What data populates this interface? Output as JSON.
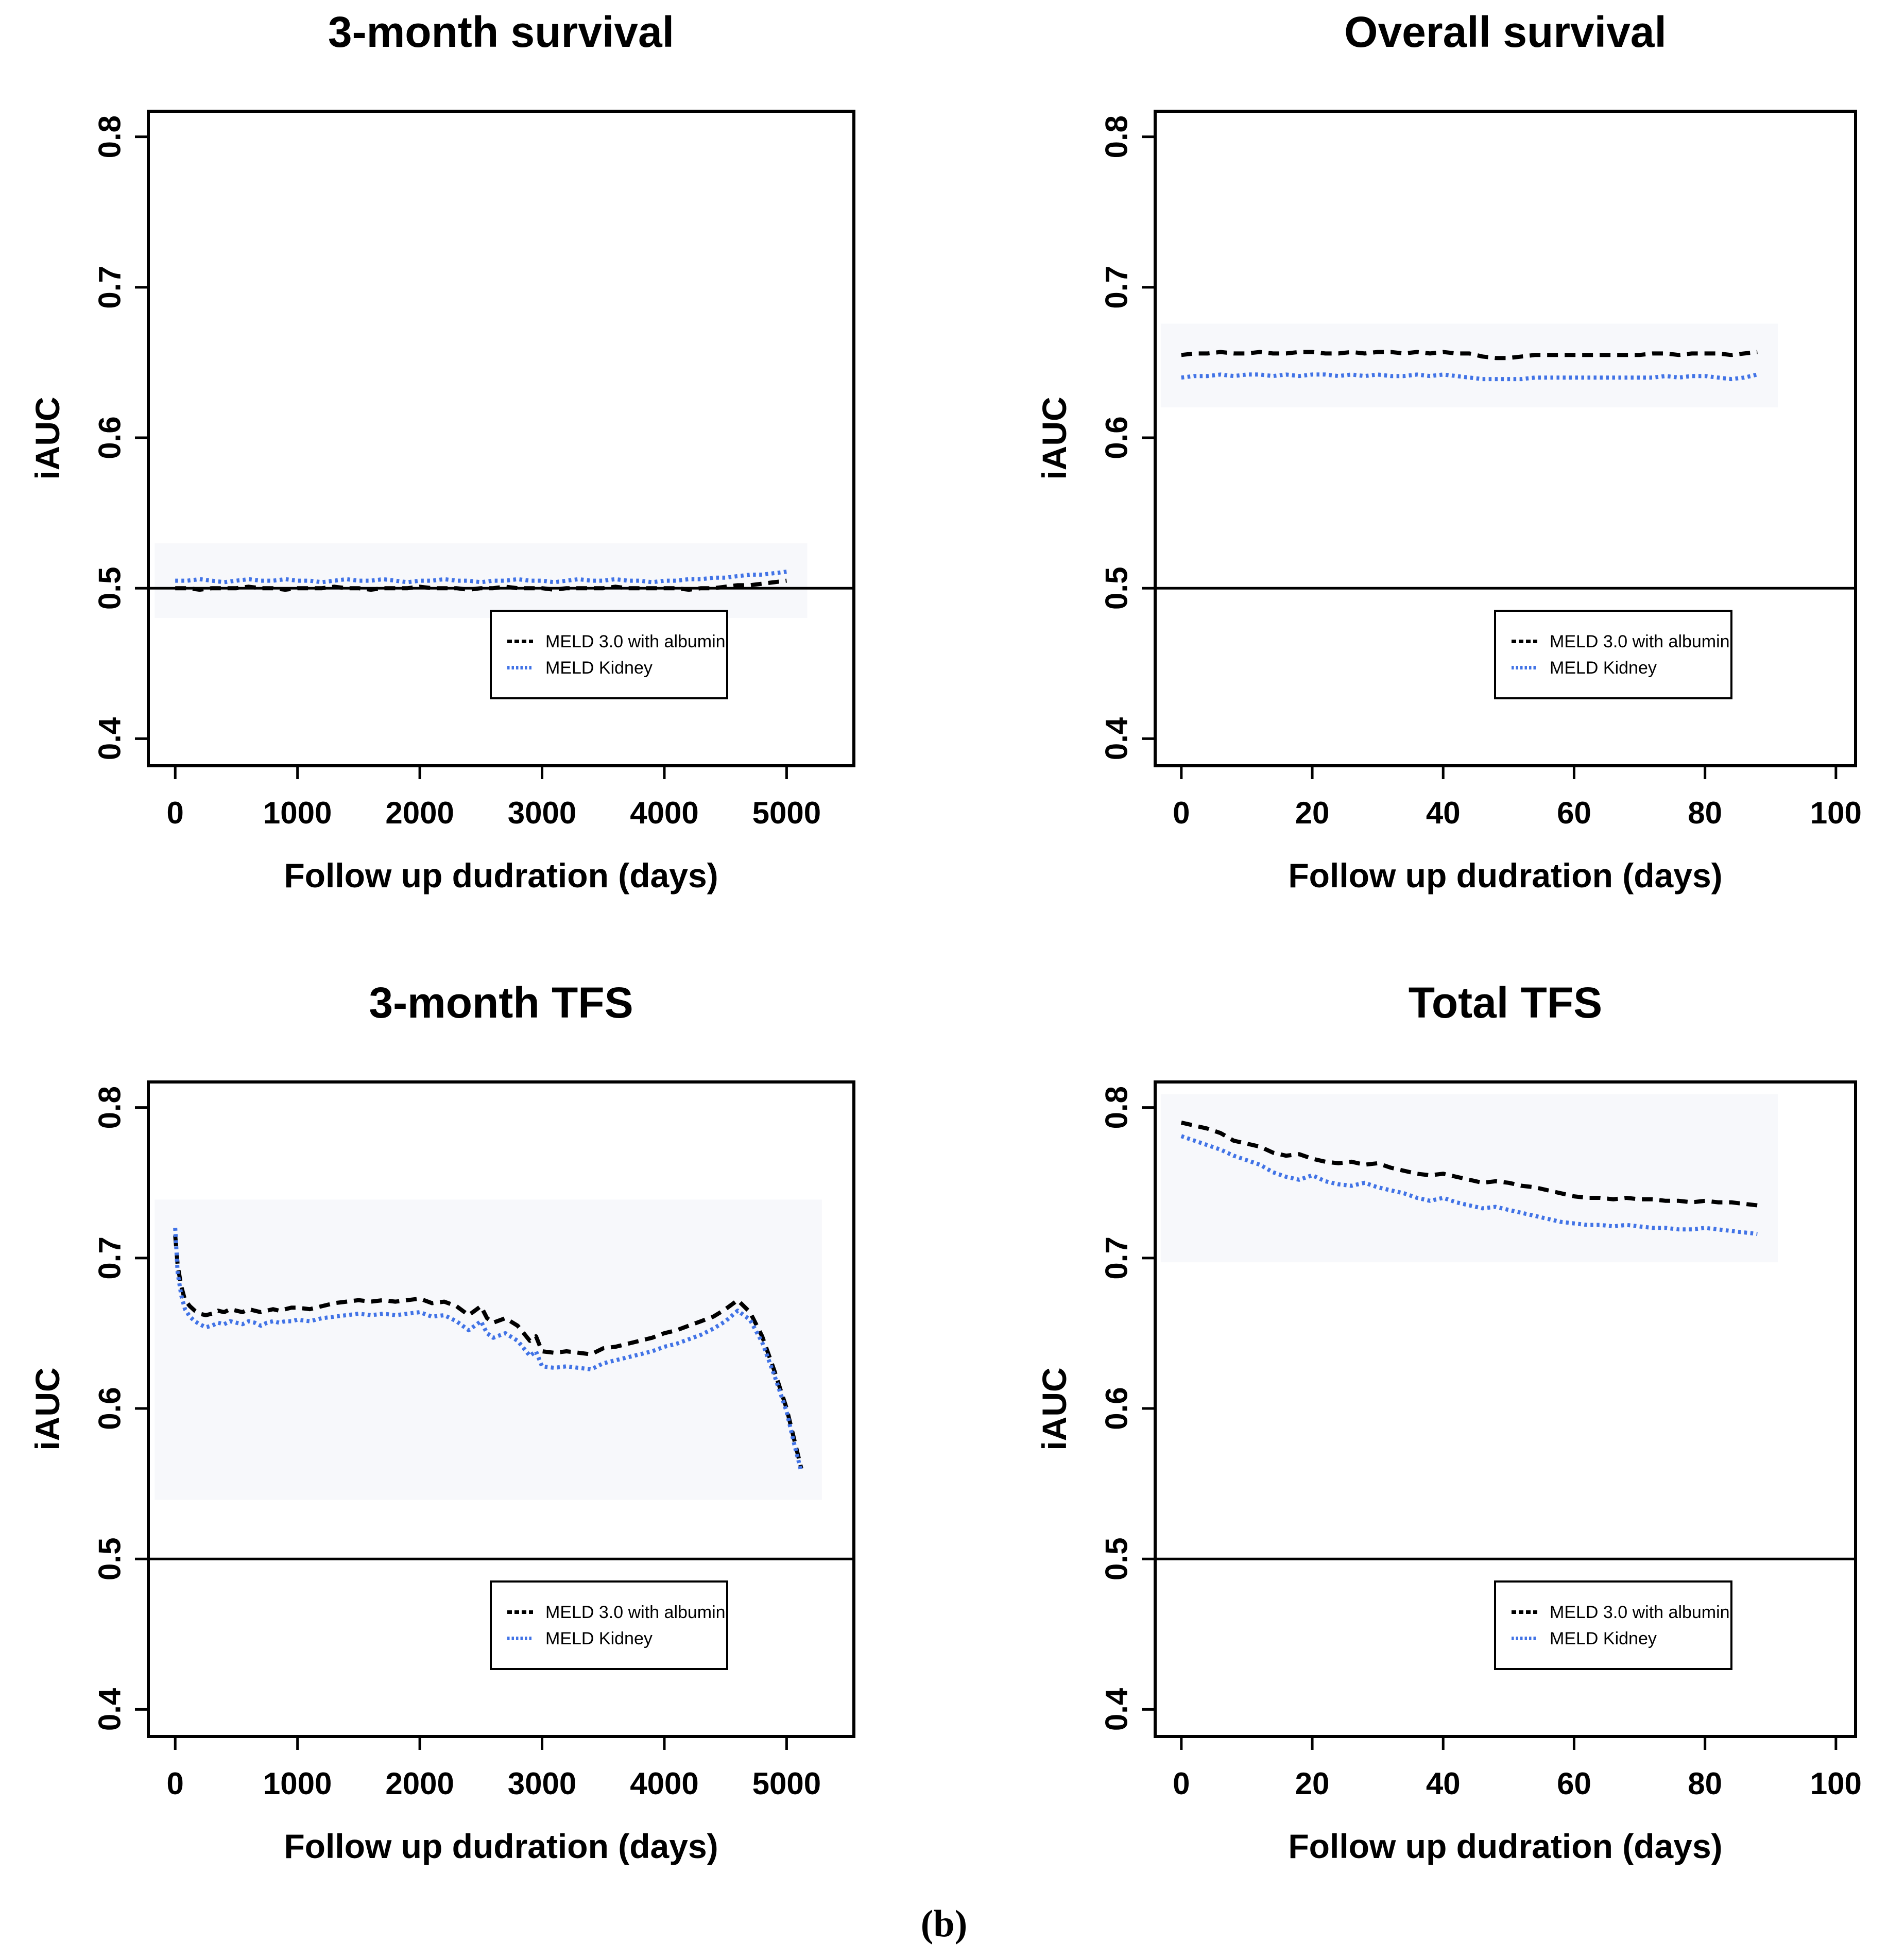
{
  "figure": {
    "caption": "(b)"
  },
  "colors": {
    "series_black": "#000000",
    "series_blue": "#4173e6",
    "reference_line": "#000000",
    "backdrop": "#f7f8fb"
  },
  "axes": {
    "ylabel": "iAUC",
    "xlabel": "Follow up dudration (days)"
  },
  "legend": {
    "items": [
      {
        "label": "MELD 3.0 with albumin",
        "color": "#000000",
        "style": "dashed"
      },
      {
        "label": "MELD Kidney",
        "color": "#4173e6",
        "style": "dotted"
      }
    ]
  },
  "chart_data": [
    {
      "type": "line",
      "title": "3-month survival",
      "xlabel": "Follow up dudration (days)",
      "ylabel": "iAUC",
      "xlim": [
        -220,
        5550
      ],
      "ylim": [
        0.382,
        0.817
      ],
      "xticks": [
        0,
        1000,
        2000,
        3000,
        4000,
        5000
      ],
      "xtick_labels": [
        "0",
        "1000",
        "2000",
        "3000",
        "4000",
        "5000"
      ],
      "yticks": [
        0.4,
        0.5,
        0.6,
        0.7,
        0.8
      ],
      "ytick_labels": [
        "0.4",
        "0.5",
        "0.6",
        "0.7",
        "0.8"
      ],
      "refline_y": 0.5,
      "grid": false,
      "legend_position": "bottom-right",
      "x": [
        0,
        100,
        200,
        300,
        400,
        500,
        600,
        700,
        800,
        900,
        1000,
        1100,
        1200,
        1300,
        1400,
        1500,
        1600,
        1700,
        1800,
        1900,
        2000,
        2100,
        2200,
        2300,
        2400,
        2500,
        2600,
        2700,
        2800,
        2900,
        3000,
        3100,
        3200,
        3300,
        3400,
        3500,
        3600,
        3700,
        3800,
        3900,
        4000,
        4100,
        4200,
        4300,
        4400,
        4500,
        4600,
        4700,
        4800,
        4900,
        5000
      ],
      "series": [
        {
          "name": "MELD 3.0 with albumin",
          "color": "#000000",
          "style": "dashed",
          "values": [
            0.5,
            0.5,
            0.499,
            0.5,
            0.5,
            0.5,
            0.501,
            0.5,
            0.5,
            0.499,
            0.5,
            0.5,
            0.5,
            0.501,
            0.5,
            0.5,
            0.499,
            0.5,
            0.5,
            0.5,
            0.501,
            0.5,
            0.5,
            0.5,
            0.499,
            0.5,
            0.5,
            0.501,
            0.5,
            0.5,
            0.5,
            0.499,
            0.5,
            0.5,
            0.5,
            0.5,
            0.501,
            0.5,
            0.5,
            0.5,
            0.5,
            0.5,
            0.499,
            0.5,
            0.5,
            0.501,
            0.502,
            0.502,
            0.503,
            0.504,
            0.505
          ]
        },
        {
          "name": "MELD Kidney",
          "color": "#4173e6",
          "style": "dotted",
          "values": [
            0.505,
            0.505,
            0.506,
            0.505,
            0.504,
            0.505,
            0.506,
            0.505,
            0.505,
            0.506,
            0.505,
            0.505,
            0.504,
            0.505,
            0.506,
            0.505,
            0.505,
            0.506,
            0.505,
            0.504,
            0.505,
            0.505,
            0.506,
            0.505,
            0.505,
            0.504,
            0.505,
            0.505,
            0.506,
            0.505,
            0.505,
            0.504,
            0.505,
            0.506,
            0.505,
            0.505,
            0.506,
            0.505,
            0.505,
            0.504,
            0.505,
            0.505,
            0.506,
            0.506,
            0.507,
            0.507,
            0.508,
            0.509,
            0.509,
            0.51,
            0.511
          ]
        }
      ]
    },
    {
      "type": "line",
      "title": "Overall survival",
      "xlabel": "Follow up dudration (days)",
      "ylabel": "iAUC",
      "xlim": [
        -4,
        103
      ],
      "ylim": [
        0.382,
        0.817
      ],
      "xticks": [
        0,
        20,
        40,
        60,
        80,
        100
      ],
      "xtick_labels": [
        "0",
        "20",
        "40",
        "60",
        "80",
        "100"
      ],
      "yticks": [
        0.4,
        0.5,
        0.6,
        0.7,
        0.8
      ],
      "ytick_labels": [
        "0.4",
        "0.5",
        "0.6",
        "0.7",
        "0.8"
      ],
      "refline_y": 0.5,
      "grid": false,
      "legend_position": "bottom-right",
      "x": [
        0,
        2,
        4,
        6,
        8,
        10,
        12,
        14,
        16,
        18,
        20,
        22,
        24,
        26,
        28,
        30,
        32,
        34,
        36,
        38,
        40,
        42,
        44,
        46,
        48,
        50,
        52,
        54,
        56,
        58,
        60,
        62,
        64,
        66,
        68,
        70,
        72,
        74,
        76,
        78,
        80,
        82,
        84,
        86,
        88
      ],
      "series": [
        {
          "name": "MELD 3.0 with albumin",
          "color": "#000000",
          "style": "dashed",
          "values": [
            0.655,
            0.656,
            0.656,
            0.657,
            0.656,
            0.656,
            0.657,
            0.656,
            0.656,
            0.657,
            0.657,
            0.656,
            0.656,
            0.657,
            0.656,
            0.657,
            0.657,
            0.656,
            0.657,
            0.656,
            0.657,
            0.656,
            0.656,
            0.654,
            0.653,
            0.653,
            0.654,
            0.655,
            0.655,
            0.655,
            0.655,
            0.655,
            0.655,
            0.655,
            0.655,
            0.655,
            0.656,
            0.656,
            0.655,
            0.656,
            0.656,
            0.656,
            0.655,
            0.656,
            0.657
          ]
        },
        {
          "name": "MELD Kidney",
          "color": "#4173e6",
          "style": "dotted",
          "values": [
            0.64,
            0.641,
            0.641,
            0.642,
            0.641,
            0.642,
            0.642,
            0.641,
            0.642,
            0.641,
            0.642,
            0.642,
            0.641,
            0.642,
            0.641,
            0.642,
            0.641,
            0.641,
            0.642,
            0.641,
            0.642,
            0.641,
            0.64,
            0.639,
            0.639,
            0.639,
            0.639,
            0.64,
            0.64,
            0.64,
            0.64,
            0.64,
            0.64,
            0.64,
            0.64,
            0.64,
            0.64,
            0.641,
            0.64,
            0.641,
            0.641,
            0.64,
            0.639,
            0.64,
            0.642
          ]
        }
      ]
    },
    {
      "type": "line",
      "title": "3-month TFS",
      "xlabel": "Follow up dudration (days)",
      "ylabel": "iAUC",
      "xlim": [
        -220,
        5550
      ],
      "ylim": [
        0.382,
        0.817
      ],
      "xticks": [
        0,
        1000,
        2000,
        3000,
        4000,
        5000
      ],
      "xtick_labels": [
        "0",
        "1000",
        "2000",
        "3000",
        "4000",
        "5000"
      ],
      "yticks": [
        0.4,
        0.5,
        0.6,
        0.7,
        0.8
      ],
      "ytick_labels": [
        "0.4",
        "0.5",
        "0.6",
        "0.7",
        "0.8"
      ],
      "refline_y": 0.5,
      "grid": false,
      "legend_position": "bottom-right",
      "x": [
        0,
        20,
        50,
        80,
        120,
        160,
        200,
        250,
        300,
        350,
        400,
        450,
        500,
        550,
        600,
        650,
        700,
        750,
        800,
        850,
        900,
        950,
        1000,
        1100,
        1200,
        1300,
        1400,
        1500,
        1600,
        1700,
        1800,
        1900,
        2000,
        2100,
        2200,
        2300,
        2400,
        2450,
        2500,
        2550,
        2600,
        2700,
        2800,
        2900,
        2950,
        3000,
        3100,
        3200,
        3300,
        3400,
        3500,
        3600,
        3700,
        3800,
        3900,
        4000,
        4100,
        4200,
        4300,
        4400,
        4500,
        4600,
        4700,
        4800,
        4900,
        5000,
        5060,
        5120
      ],
      "series": [
        {
          "name": "MELD 3.0 with albumin",
          "color": "#000000",
          "style": "dashed",
          "values": [
            0.715,
            0.695,
            0.681,
            0.672,
            0.668,
            0.665,
            0.663,
            0.662,
            0.663,
            0.665,
            0.664,
            0.666,
            0.665,
            0.664,
            0.666,
            0.665,
            0.664,
            0.665,
            0.666,
            0.665,
            0.666,
            0.667,
            0.667,
            0.666,
            0.668,
            0.67,
            0.671,
            0.672,
            0.671,
            0.672,
            0.671,
            0.672,
            0.673,
            0.67,
            0.671,
            0.668,
            0.662,
            0.665,
            0.668,
            0.66,
            0.657,
            0.66,
            0.655,
            0.645,
            0.648,
            0.638,
            0.637,
            0.638,
            0.637,
            0.636,
            0.64,
            0.641,
            0.643,
            0.645,
            0.647,
            0.65,
            0.652,
            0.655,
            0.658,
            0.661,
            0.666,
            0.672,
            0.664,
            0.648,
            0.625,
            0.6,
            0.58,
            0.56
          ]
        },
        {
          "name": "MELD Kidney",
          "color": "#4173e6",
          "style": "dotted",
          "values": [
            0.72,
            0.69,
            0.675,
            0.666,
            0.661,
            0.658,
            0.656,
            0.654,
            0.655,
            0.657,
            0.656,
            0.658,
            0.657,
            0.656,
            0.658,
            0.657,
            0.655,
            0.657,
            0.658,
            0.657,
            0.658,
            0.658,
            0.659,
            0.658,
            0.66,
            0.661,
            0.662,
            0.663,
            0.662,
            0.663,
            0.662,
            0.663,
            0.664,
            0.661,
            0.662,
            0.658,
            0.652,
            0.655,
            0.658,
            0.65,
            0.647,
            0.65,
            0.645,
            0.635,
            0.638,
            0.628,
            0.627,
            0.628,
            0.627,
            0.626,
            0.63,
            0.632,
            0.634,
            0.636,
            0.638,
            0.641,
            0.643,
            0.646,
            0.649,
            0.653,
            0.658,
            0.665,
            0.659,
            0.644,
            0.622,
            0.598,
            0.577,
            0.558
          ]
        }
      ]
    },
    {
      "type": "line",
      "title": "Total TFS",
      "xlabel": "Follow up dudration (days)",
      "ylabel": "iAUC",
      "xlim": [
        -4,
        103
      ],
      "ylim": [
        0.382,
        0.817
      ],
      "xticks": [
        0,
        20,
        40,
        60,
        80,
        100
      ],
      "xtick_labels": [
        "0",
        "20",
        "40",
        "60",
        "80",
        "100"
      ],
      "yticks": [
        0.4,
        0.5,
        0.6,
        0.7,
        0.8
      ],
      "ytick_labels": [
        "0.4",
        "0.5",
        "0.6",
        "0.7",
        "0.8"
      ],
      "refline_y": 0.5,
      "grid": false,
      "legend_position": "bottom-right",
      "x": [
        0,
        2,
        4,
        6,
        8,
        10,
        12,
        14,
        16,
        18,
        20,
        22,
        24,
        26,
        28,
        30,
        32,
        34,
        36,
        38,
        40,
        42,
        44,
        46,
        48,
        50,
        52,
        54,
        56,
        58,
        60,
        62,
        64,
        66,
        68,
        70,
        72,
        74,
        76,
        78,
        80,
        82,
        84,
        86,
        88
      ],
      "series": [
        {
          "name": "MELD 3.0 with albumin",
          "color": "#000000",
          "style": "dashed",
          "values": [
            0.79,
            0.788,
            0.786,
            0.783,
            0.778,
            0.776,
            0.774,
            0.77,
            0.768,
            0.769,
            0.766,
            0.764,
            0.763,
            0.764,
            0.762,
            0.763,
            0.76,
            0.758,
            0.756,
            0.755,
            0.756,
            0.754,
            0.752,
            0.75,
            0.751,
            0.75,
            0.748,
            0.747,
            0.745,
            0.743,
            0.741,
            0.74,
            0.74,
            0.739,
            0.74,
            0.739,
            0.739,
            0.738,
            0.738,
            0.737,
            0.738,
            0.737,
            0.737,
            0.736,
            0.735
          ]
        },
        {
          "name": "MELD Kidney",
          "color": "#4173e6",
          "style": "dotted",
          "values": [
            0.781,
            0.778,
            0.775,
            0.772,
            0.768,
            0.765,
            0.762,
            0.757,
            0.754,
            0.752,
            0.755,
            0.751,
            0.749,
            0.748,
            0.75,
            0.747,
            0.745,
            0.743,
            0.74,
            0.738,
            0.74,
            0.737,
            0.735,
            0.733,
            0.734,
            0.732,
            0.73,
            0.728,
            0.726,
            0.724,
            0.723,
            0.722,
            0.722,
            0.721,
            0.722,
            0.721,
            0.72,
            0.72,
            0.719,
            0.719,
            0.72,
            0.719,
            0.718,
            0.717,
            0.716
          ]
        }
      ]
    }
  ]
}
